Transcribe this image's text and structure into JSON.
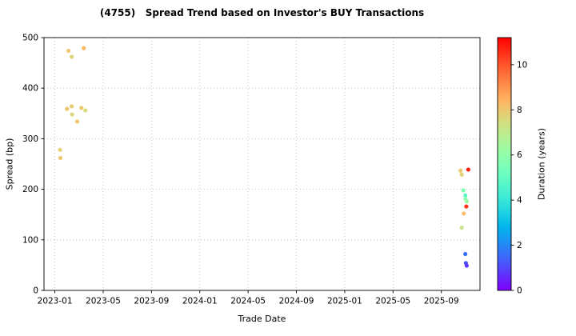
{
  "chart_data": {
    "type": "scatter",
    "title": "(4755)   Spread Trend based on Investor's BUY Transactions",
    "xlabel": "Trade Date",
    "ylabel": "Spread (bp)",
    "colorbar_label": "Duration (years)",
    "ylim": [
      0,
      500
    ],
    "yticks": [
      0,
      100,
      200,
      300,
      400,
      500
    ],
    "xtick_labels": [
      "2023-01",
      "2023-05",
      "2023-09",
      "2024-01",
      "2024-05",
      "2024-09",
      "2025-01",
      "2025-05",
      "2025-09"
    ],
    "xlim_months": [
      -0.9,
      35.2
    ],
    "grid": true,
    "colorbar": {
      "vmin": 0,
      "vmax": 11.2,
      "ticks": [
        0,
        2,
        4,
        6,
        8,
        10
      ],
      "colormap": "rainbow"
    },
    "points": [
      {
        "date": "2023-01-14",
        "spread": 278,
        "duration": 7.8
      },
      {
        "date": "2023-01-15",
        "spread": 262,
        "duration": 8.0
      },
      {
        "date": "2023-02-05",
        "spread": 474,
        "duration": 8.0
      },
      {
        "date": "2023-02-13",
        "spread": 462,
        "duration": 7.7
      },
      {
        "date": "2023-02-01",
        "spread": 359,
        "duration": 8.0
      },
      {
        "date": "2023-02-13",
        "spread": 364,
        "duration": 7.9
      },
      {
        "date": "2023-02-14",
        "spread": 348,
        "duration": 7.6
      },
      {
        "date": "2023-02-27",
        "spread": 334,
        "duration": 8.0
      },
      {
        "date": "2023-03-13",
        "spread": 479,
        "duration": 8.3
      },
      {
        "date": "2023-03-07",
        "spread": 361,
        "duration": 8.0
      },
      {
        "date": "2023-03-17",
        "spread": 356,
        "duration": 7.5
      },
      {
        "date": "2025-10-19",
        "spread": 237,
        "duration": 8.0
      },
      {
        "date": "2025-10-22",
        "spread": 229,
        "duration": 7.8
      },
      {
        "date": "2025-11-08",
        "spread": 239,
        "duration": 10.8
      },
      {
        "date": "2025-10-26",
        "spread": 198,
        "duration": 5.6
      },
      {
        "date": "2025-10-31",
        "spread": 188,
        "duration": 4.8
      },
      {
        "date": "2025-11-01",
        "spread": 181,
        "duration": 5.8
      },
      {
        "date": "2025-11-04",
        "spread": 176,
        "duration": 6.2
      },
      {
        "date": "2025-11-03",
        "spread": 166,
        "duration": 10.5
      },
      {
        "date": "2025-10-27",
        "spread": 152,
        "duration": 8.2
      },
      {
        "date": "2025-10-22",
        "spread": 124,
        "duration": 7.2
      },
      {
        "date": "2025-10-31",
        "spread": 72,
        "duration": 1.6
      },
      {
        "date": "2025-11-02",
        "spread": 54,
        "duration": 1.2
      },
      {
        "date": "2025-11-04",
        "spread": 49,
        "duration": 0.8
      }
    ]
  }
}
